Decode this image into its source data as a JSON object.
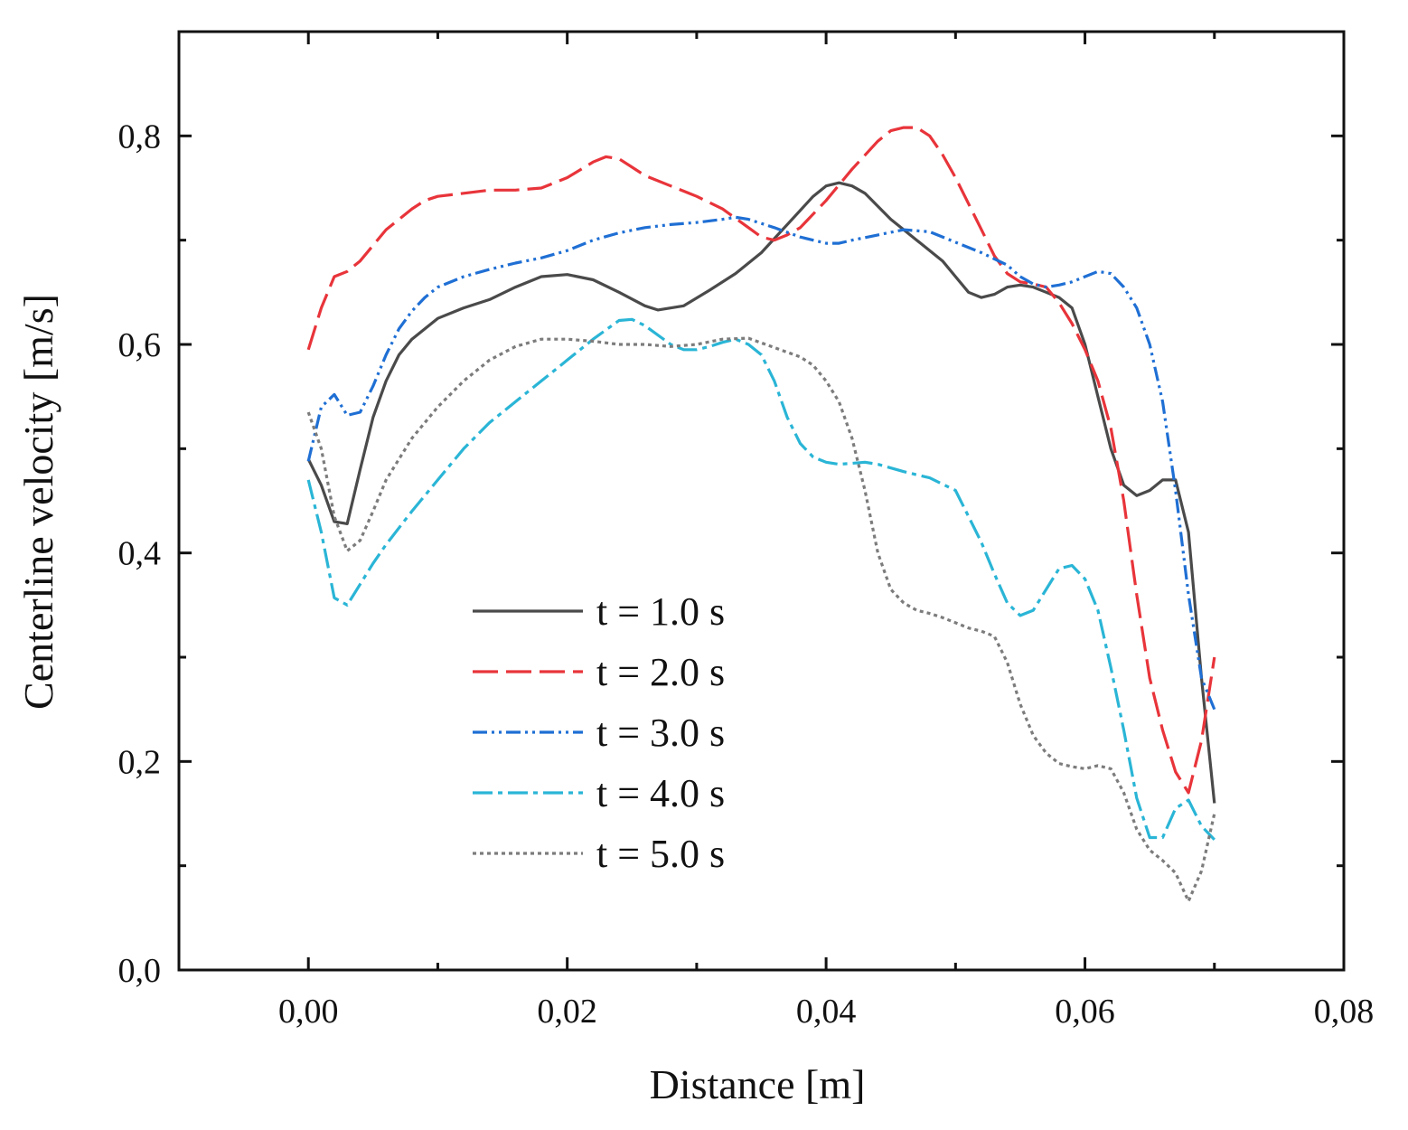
{
  "chart_data": {
    "type": "line",
    "title": "",
    "xlabel": "Distance [m]",
    "ylabel": "Centerline velocity [m/s]",
    "xlim": [
      -0.01,
      0.08
    ],
    "ylim": [
      0.0,
      0.9
    ],
    "xticks": [
      0.0,
      0.02,
      0.04,
      0.06,
      0.08
    ],
    "xtick_labels": [
      "0,00",
      "0,02",
      "0,04",
      "0,06",
      "0,08"
    ],
    "yticks": [
      0.0,
      0.2,
      0.4,
      0.6,
      0.8
    ],
    "ytick_labels": [
      "0,0",
      "0,2",
      "0,4",
      "0,6",
      "0,8"
    ],
    "grid": false,
    "legend_position": "bottom-center",
    "series": [
      {
        "name": "t = 1.0 s",
        "color": "#4a4a4a",
        "dash": "solid",
        "points": [
          [
            0.0,
            0.49
          ],
          [
            0.001,
            0.465
          ],
          [
            0.002,
            0.43
          ],
          [
            0.003,
            0.428
          ],
          [
            0.004,
            0.48
          ],
          [
            0.005,
            0.53
          ],
          [
            0.006,
            0.565
          ],
          [
            0.007,
            0.59
          ],
          [
            0.008,
            0.605
          ],
          [
            0.009,
            0.615
          ],
          [
            0.01,
            0.625
          ],
          [
            0.012,
            0.635
          ],
          [
            0.014,
            0.643
          ],
          [
            0.016,
            0.655
          ],
          [
            0.018,
            0.665
          ],
          [
            0.02,
            0.667
          ],
          [
            0.022,
            0.662
          ],
          [
            0.024,
            0.65
          ],
          [
            0.026,
            0.637
          ],
          [
            0.027,
            0.633
          ],
          [
            0.029,
            0.637
          ],
          [
            0.031,
            0.652
          ],
          [
            0.033,
            0.668
          ],
          [
            0.035,
            0.688
          ],
          [
            0.037,
            0.715
          ],
          [
            0.039,
            0.742
          ],
          [
            0.04,
            0.752
          ],
          [
            0.041,
            0.755
          ],
          [
            0.042,
            0.752
          ],
          [
            0.043,
            0.745
          ],
          [
            0.045,
            0.72
          ],
          [
            0.047,
            0.7
          ],
          [
            0.049,
            0.68
          ],
          [
            0.05,
            0.665
          ],
          [
            0.051,
            0.65
          ],
          [
            0.052,
            0.645
          ],
          [
            0.053,
            0.648
          ],
          [
            0.054,
            0.655
          ],
          [
            0.055,
            0.657
          ],
          [
            0.056,
            0.655
          ],
          [
            0.057,
            0.65
          ],
          [
            0.058,
            0.645
          ],
          [
            0.059,
            0.635
          ],
          [
            0.06,
            0.6
          ],
          [
            0.061,
            0.55
          ],
          [
            0.062,
            0.5
          ],
          [
            0.063,
            0.465
          ],
          [
            0.064,
            0.455
          ],
          [
            0.065,
            0.46
          ],
          [
            0.066,
            0.47
          ],
          [
            0.067,
            0.47
          ],
          [
            0.068,
            0.42
          ],
          [
            0.069,
            0.28
          ],
          [
            0.07,
            0.16
          ]
        ]
      },
      {
        "name": "t = 2.0 s",
        "color": "#e8343a",
        "dash": "long-dash",
        "points": [
          [
            0.0,
            0.595
          ],
          [
            0.001,
            0.635
          ],
          [
            0.002,
            0.665
          ],
          [
            0.003,
            0.67
          ],
          [
            0.004,
            0.68
          ],
          [
            0.006,
            0.71
          ],
          [
            0.008,
            0.73
          ],
          [
            0.009,
            0.738
          ],
          [
            0.01,
            0.742
          ],
          [
            0.012,
            0.745
          ],
          [
            0.014,
            0.748
          ],
          [
            0.016,
            0.748
          ],
          [
            0.018,
            0.75
          ],
          [
            0.02,
            0.76
          ],
          [
            0.022,
            0.775
          ],
          [
            0.023,
            0.78
          ],
          [
            0.024,
            0.778
          ],
          [
            0.025,
            0.77
          ],
          [
            0.026,
            0.762
          ],
          [
            0.028,
            0.752
          ],
          [
            0.03,
            0.742
          ],
          [
            0.032,
            0.73
          ],
          [
            0.034,
            0.712
          ],
          [
            0.035,
            0.703
          ],
          [
            0.036,
            0.7
          ],
          [
            0.037,
            0.705
          ],
          [
            0.038,
            0.712
          ],
          [
            0.039,
            0.725
          ],
          [
            0.04,
            0.738
          ],
          [
            0.042,
            0.768
          ],
          [
            0.044,
            0.795
          ],
          [
            0.045,
            0.805
          ],
          [
            0.046,
            0.808
          ],
          [
            0.047,
            0.808
          ],
          [
            0.048,
            0.8
          ],
          [
            0.049,
            0.782
          ],
          [
            0.05,
            0.76
          ],
          [
            0.051,
            0.735
          ],
          [
            0.052,
            0.71
          ],
          [
            0.053,
            0.685
          ],
          [
            0.054,
            0.668
          ],
          [
            0.055,
            0.66
          ],
          [
            0.056,
            0.658
          ],
          [
            0.057,
            0.655
          ],
          [
            0.058,
            0.64
          ],
          [
            0.059,
            0.62
          ],
          [
            0.06,
            0.595
          ],
          [
            0.061,
            0.565
          ],
          [
            0.062,
            0.52
          ],
          [
            0.063,
            0.45
          ],
          [
            0.064,
            0.36
          ],
          [
            0.065,
            0.28
          ],
          [
            0.066,
            0.23
          ],
          [
            0.067,
            0.19
          ],
          [
            0.068,
            0.17
          ],
          [
            0.069,
            0.22
          ],
          [
            0.07,
            0.3
          ]
        ]
      },
      {
        "name": "t = 3.0 s",
        "color": "#1f6fd4",
        "dash": "dash-dot-dot",
        "points": [
          [
            0.0,
            0.488
          ],
          [
            0.001,
            0.54
          ],
          [
            0.002,
            0.552
          ],
          [
            0.003,
            0.532
          ],
          [
            0.004,
            0.535
          ],
          [
            0.005,
            0.56
          ],
          [
            0.006,
            0.59
          ],
          [
            0.007,
            0.615
          ],
          [
            0.008,
            0.632
          ],
          [
            0.009,
            0.645
          ],
          [
            0.01,
            0.655
          ],
          [
            0.012,
            0.665
          ],
          [
            0.014,
            0.672
          ],
          [
            0.016,
            0.678
          ],
          [
            0.018,
            0.683
          ],
          [
            0.02,
            0.69
          ],
          [
            0.022,
            0.7
          ],
          [
            0.024,
            0.707
          ],
          [
            0.026,
            0.712
          ],
          [
            0.028,
            0.715
          ],
          [
            0.03,
            0.717
          ],
          [
            0.032,
            0.72
          ],
          [
            0.033,
            0.722
          ],
          [
            0.034,
            0.72
          ],
          [
            0.036,
            0.712
          ],
          [
            0.038,
            0.703
          ],
          [
            0.04,
            0.697
          ],
          [
            0.041,
            0.697
          ],
          [
            0.042,
            0.7
          ],
          [
            0.044,
            0.705
          ],
          [
            0.046,
            0.71
          ],
          [
            0.048,
            0.708
          ],
          [
            0.05,
            0.698
          ],
          [
            0.052,
            0.688
          ],
          [
            0.054,
            0.676
          ],
          [
            0.055,
            0.665
          ],
          [
            0.056,
            0.658
          ],
          [
            0.057,
            0.655
          ],
          [
            0.058,
            0.657
          ],
          [
            0.059,
            0.66
          ],
          [
            0.06,
            0.665
          ],
          [
            0.061,
            0.67
          ],
          [
            0.062,
            0.668
          ],
          [
            0.063,
            0.655
          ],
          [
            0.064,
            0.635
          ],
          [
            0.065,
            0.6
          ],
          [
            0.066,
            0.545
          ],
          [
            0.067,
            0.46
          ],
          [
            0.068,
            0.36
          ],
          [
            0.069,
            0.28
          ],
          [
            0.07,
            0.25
          ]
        ]
      },
      {
        "name": "t = 4.0 s",
        "color": "#2ab5d6",
        "dash": "dash-dot",
        "points": [
          [
            0.0,
            0.47
          ],
          [
            0.001,
            0.42
          ],
          [
            0.002,
            0.357
          ],
          [
            0.003,
            0.35
          ],
          [
            0.004,
            0.37
          ],
          [
            0.005,
            0.39
          ],
          [
            0.006,
            0.408
          ],
          [
            0.008,
            0.44
          ],
          [
            0.01,
            0.47
          ],
          [
            0.012,
            0.5
          ],
          [
            0.014,
            0.525
          ],
          [
            0.016,
            0.545
          ],
          [
            0.018,
            0.565
          ],
          [
            0.02,
            0.585
          ],
          [
            0.022,
            0.605
          ],
          [
            0.024,
            0.623
          ],
          [
            0.025,
            0.624
          ],
          [
            0.026,
            0.618
          ],
          [
            0.028,
            0.6
          ],
          [
            0.029,
            0.595
          ],
          [
            0.03,
            0.595
          ],
          [
            0.031,
            0.598
          ],
          [
            0.032,
            0.602
          ],
          [
            0.033,
            0.605
          ],
          [
            0.034,
            0.6
          ],
          [
            0.035,
            0.59
          ],
          [
            0.036,
            0.565
          ],
          [
            0.037,
            0.53
          ],
          [
            0.038,
            0.505
          ],
          [
            0.039,
            0.492
          ],
          [
            0.04,
            0.487
          ],
          [
            0.041,
            0.485
          ],
          [
            0.042,
            0.486
          ],
          [
            0.043,
            0.487
          ],
          [
            0.044,
            0.485
          ],
          [
            0.046,
            0.478
          ],
          [
            0.048,
            0.472
          ],
          [
            0.05,
            0.46
          ],
          [
            0.051,
            0.435
          ],
          [
            0.052,
            0.41
          ],
          [
            0.053,
            0.38
          ],
          [
            0.054,
            0.352
          ],
          [
            0.055,
            0.34
          ],
          [
            0.056,
            0.345
          ],
          [
            0.057,
            0.365
          ],
          [
            0.058,
            0.385
          ],
          [
            0.059,
            0.388
          ],
          [
            0.06,
            0.375
          ],
          [
            0.061,
            0.345
          ],
          [
            0.062,
            0.29
          ],
          [
            0.063,
            0.23
          ],
          [
            0.064,
            0.165
          ],
          [
            0.065,
            0.127
          ],
          [
            0.066,
            0.127
          ],
          [
            0.067,
            0.155
          ],
          [
            0.068,
            0.163
          ],
          [
            0.069,
            0.138
          ],
          [
            0.07,
            0.125
          ]
        ]
      },
      {
        "name": "t = 5.0 s",
        "color": "#7c7c7c",
        "dash": "dot",
        "points": [
          [
            0.0,
            0.535
          ],
          [
            0.001,
            0.5
          ],
          [
            0.002,
            0.435
          ],
          [
            0.003,
            0.402
          ],
          [
            0.004,
            0.412
          ],
          [
            0.005,
            0.44
          ],
          [
            0.006,
            0.47
          ],
          [
            0.008,
            0.51
          ],
          [
            0.01,
            0.54
          ],
          [
            0.012,
            0.565
          ],
          [
            0.014,
            0.585
          ],
          [
            0.016,
            0.598
          ],
          [
            0.018,
            0.605
          ],
          [
            0.02,
            0.605
          ],
          [
            0.022,
            0.603
          ],
          [
            0.024,
            0.6
          ],
          [
            0.026,
            0.6
          ],
          [
            0.028,
            0.598
          ],
          [
            0.03,
            0.6
          ],
          [
            0.032,
            0.605
          ],
          [
            0.034,
            0.606
          ],
          [
            0.036,
            0.597
          ],
          [
            0.038,
            0.588
          ],
          [
            0.039,
            0.58
          ],
          [
            0.04,
            0.565
          ],
          [
            0.041,
            0.545
          ],
          [
            0.042,
            0.51
          ],
          [
            0.043,
            0.46
          ],
          [
            0.044,
            0.4
          ],
          [
            0.045,
            0.365
          ],
          [
            0.046,
            0.352
          ],
          [
            0.047,
            0.345
          ],
          [
            0.048,
            0.342
          ],
          [
            0.049,
            0.338
          ],
          [
            0.05,
            0.333
          ],
          [
            0.051,
            0.328
          ],
          [
            0.052,
            0.325
          ],
          [
            0.053,
            0.32
          ],
          [
            0.054,
            0.295
          ],
          [
            0.055,
            0.255
          ],
          [
            0.056,
            0.225
          ],
          [
            0.057,
            0.208
          ],
          [
            0.058,
            0.198
          ],
          [
            0.059,
            0.195
          ],
          [
            0.06,
            0.193
          ],
          [
            0.061,
            0.196
          ],
          [
            0.062,
            0.193
          ],
          [
            0.063,
            0.17
          ],
          [
            0.064,
            0.135
          ],
          [
            0.065,
            0.115
          ],
          [
            0.066,
            0.105
          ],
          [
            0.067,
            0.093
          ],
          [
            0.068,
            0.066
          ],
          [
            0.069,
            0.095
          ],
          [
            0.07,
            0.15
          ]
        ]
      }
    ]
  }
}
